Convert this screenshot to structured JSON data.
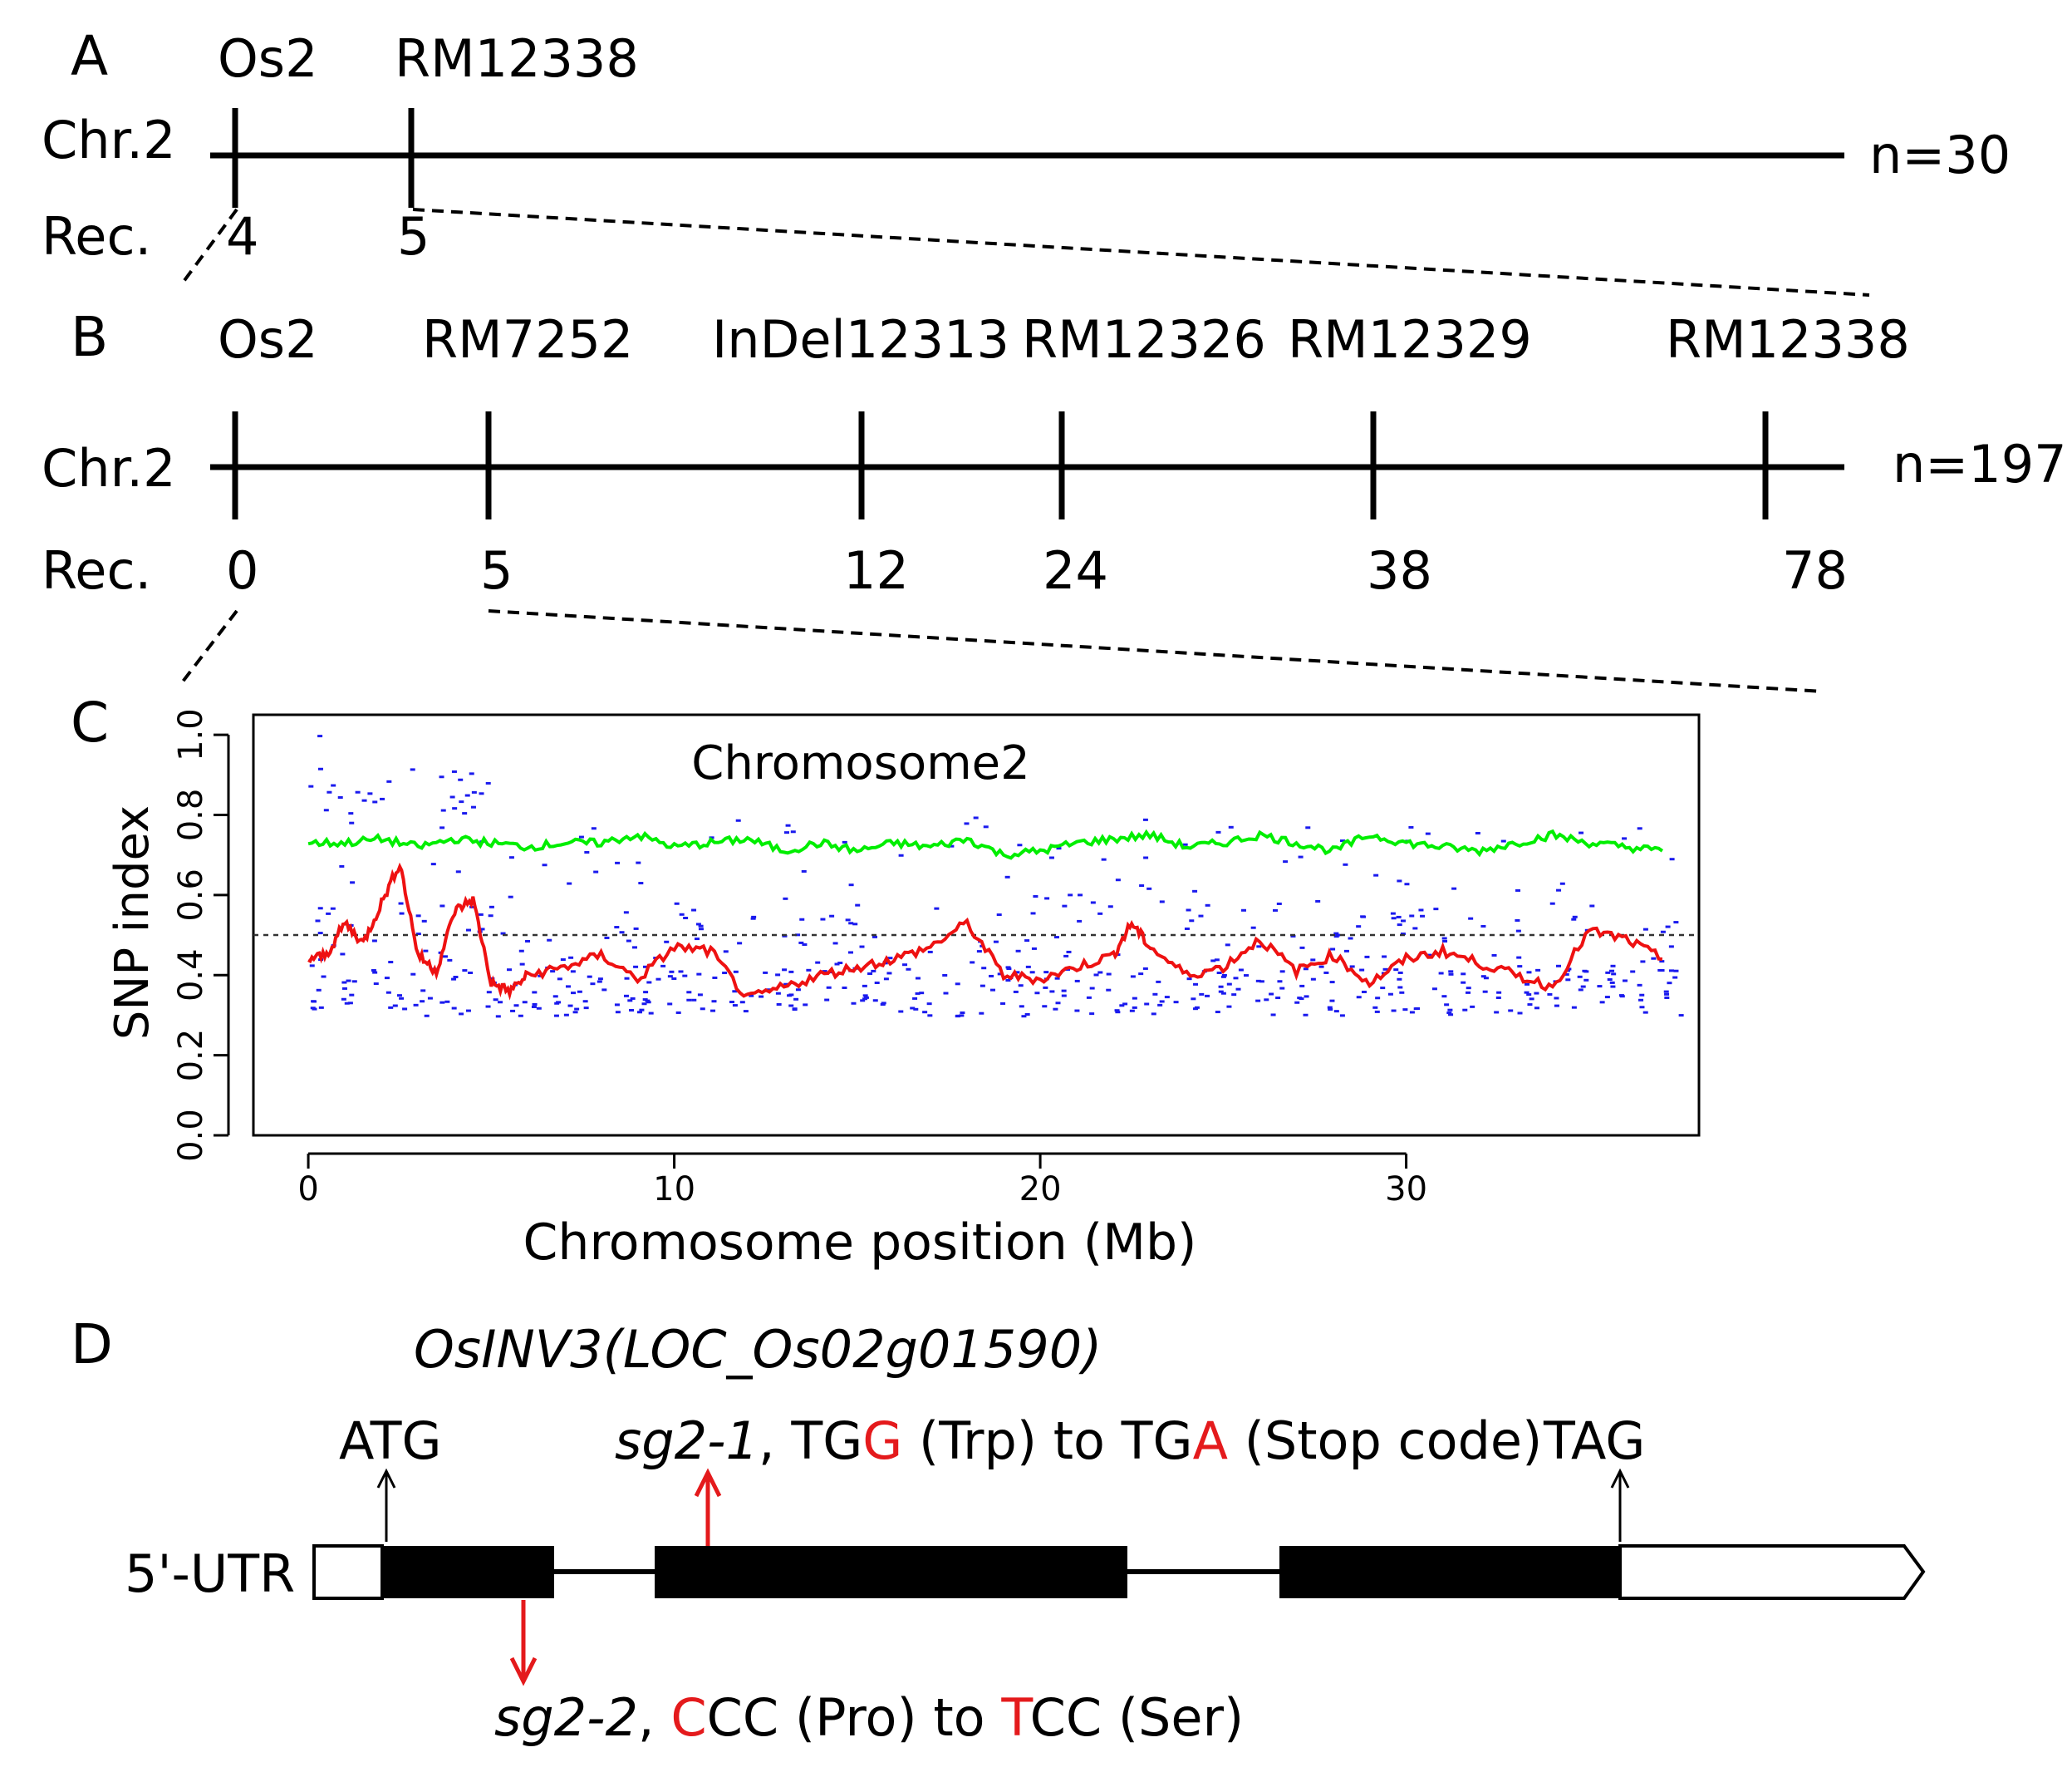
{
  "panel_a": {
    "letter": "A",
    "markers": [
      "Os2",
      "RM12338"
    ],
    "chr_label": "Chr.2",
    "rec_label": "Rec.",
    "rec_values": [
      "4",
      "5"
    ],
    "n": "n=30"
  },
  "panel_b": {
    "letter": "B",
    "markers": [
      "Os2",
      "RM7252",
      "InDel12313",
      "RM12326",
      "RM12329",
      "RM12338"
    ],
    "chr_label": "Chr.2",
    "rec_label": "Rec.",
    "rec_values": [
      "0",
      "5",
      "12",
      "24",
      "38",
      "78"
    ],
    "n": "n=197"
  },
  "panel_c": {
    "letter": "C",
    "title": "Chromosome2",
    "ylabel": "SNP index",
    "xlabel": "Chromosome position (Mb)",
    "y_ticks": [
      "0.0",
      "0.2",
      "0.4",
      "0.6",
      "0.8",
      "1.0"
    ],
    "x_ticks": [
      "0",
      "10",
      "20",
      "30"
    ]
  },
  "chart_data": {
    "type": "line",
    "title": "Chromosome2",
    "xlabel": "Chromosome position (Mb)",
    "ylabel": "SNP index",
    "xlim": [
      -1.5,
      38
    ],
    "ylim": [
      0,
      1.05
    ],
    "threshold": 0.5,
    "series": [
      {
        "name": "green",
        "color": "#00ee00",
        "x": [
          0,
          1,
          2,
          3,
          4,
          5,
          6,
          7,
          8,
          9,
          10,
          11,
          12,
          13,
          14,
          15,
          16,
          17,
          18,
          19,
          20,
          21,
          22,
          23,
          24,
          25,
          26,
          27,
          28,
          29,
          30,
          31,
          32,
          33,
          34,
          35,
          36,
          37
        ],
        "y": [
          0.73,
          0.73,
          0.74,
          0.72,
          0.74,
          0.73,
          0.72,
          0.73,
          0.73,
          0.75,
          0.72,
          0.73,
          0.74,
          0.71,
          0.73,
          0.71,
          0.73,
          0.72,
          0.74,
          0.7,
          0.71,
          0.73,
          0.74,
          0.75,
          0.72,
          0.73,
          0.75,
          0.73,
          0.71,
          0.75,
          0.73,
          0.72,
          0.71,
          0.73,
          0.75,
          0.73,
          0.72,
          0.71
        ]
      },
      {
        "name": "red",
        "color": "#ee1111",
        "x": [
          0,
          0.5,
          1,
          1.5,
          2,
          2.5,
          3,
          3.5,
          4,
          4.5,
          5,
          5.5,
          6,
          7,
          8,
          9,
          10,
          11,
          12,
          13,
          14,
          15,
          16,
          17,
          18,
          19,
          20,
          21,
          22,
          22.5,
          23,
          24,
          25,
          26,
          27,
          28,
          29,
          30,
          31,
          32,
          33,
          34,
          35,
          36,
          37
        ],
        "y": [
          0.44,
          0.45,
          0.53,
          0.48,
          0.58,
          0.68,
          0.45,
          0.41,
          0.56,
          0.59,
          0.38,
          0.36,
          0.4,
          0.42,
          0.45,
          0.39,
          0.47,
          0.46,
          0.34,
          0.37,
          0.4,
          0.42,
          0.44,
          0.47,
          0.53,
          0.4,
          0.39,
          0.42,
          0.45,
          0.53,
          0.47,
          0.4,
          0.42,
          0.49,
          0.41,
          0.45,
          0.38,
          0.44,
          0.46,
          0.43,
          0.4,
          0.37,
          0.51,
          0.49,
          0.44
        ]
      }
    ]
  },
  "panel_d": {
    "letter": "D",
    "gene_name": "OsINV3",
    "gene_locus": "(LOC_Os02g01590)",
    "atg": "ATG",
    "tag": "TAG",
    "utr_label": "5'-UTR",
    "sg2_1": {
      "name": "sg2-1",
      "pre": ", TG",
      "mut1": "G",
      "mid": " (Trp) to TG",
      "mut2": "A",
      "post": " (Stop code)"
    },
    "sg2_2": {
      "name": "sg2-2",
      "pre": ", ",
      "mut1": "C",
      "mid": "CC (Pro) to ",
      "mut2": "T",
      "post": "CC (Ser)"
    }
  },
  "colors": {
    "green_line": "#00ee00",
    "red_line": "#ee1111",
    "snp_dots": "#1a1aee",
    "mutation": "#e41a1c"
  }
}
